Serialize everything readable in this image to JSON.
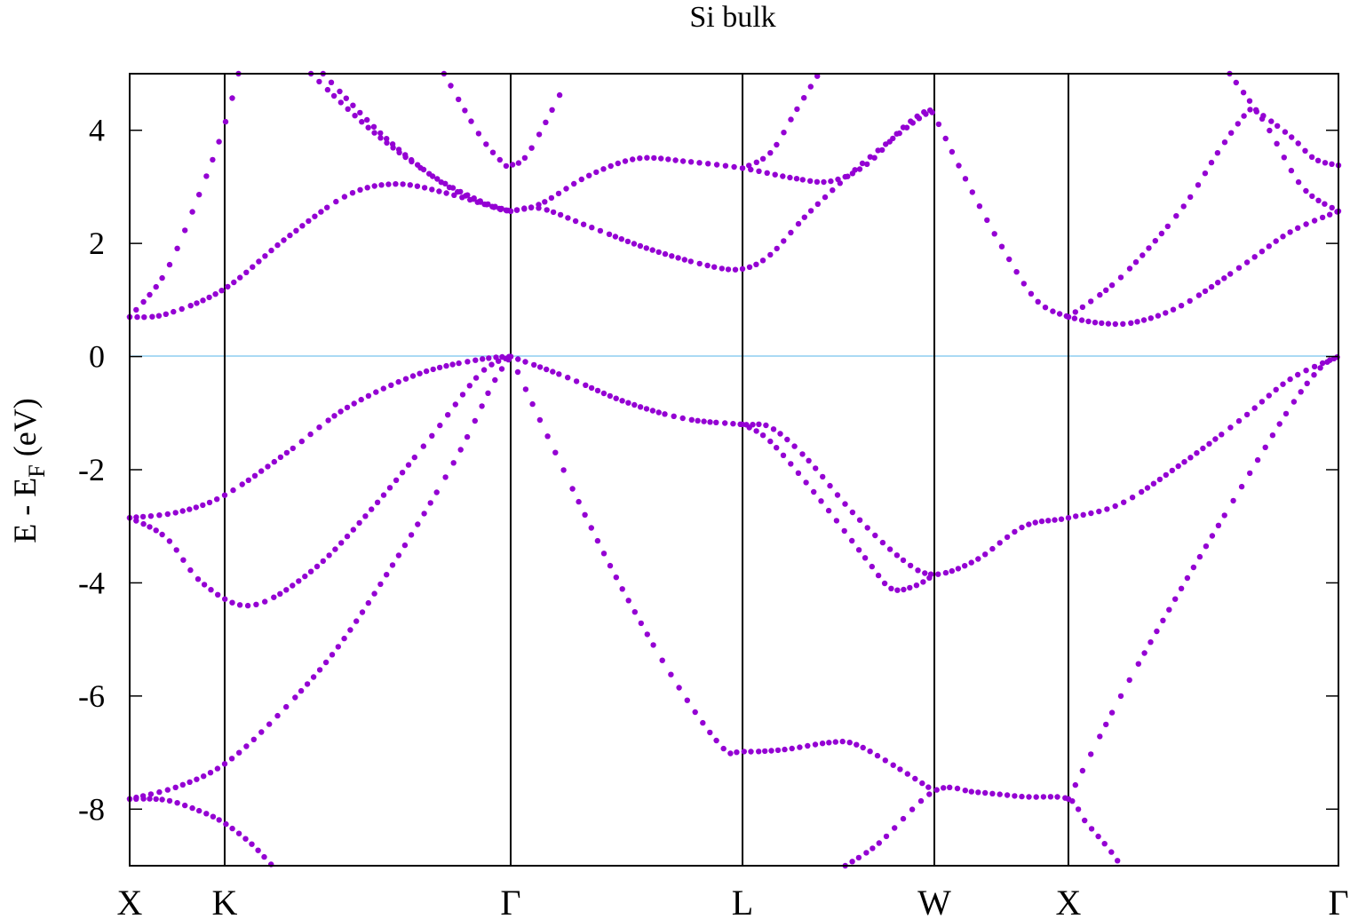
{
  "chart_data": {
    "type": "scatter",
    "subtype": "band-structure",
    "title": "Si bulk",
    "xlabel": "",
    "ylabel": "E - E_F (eV)",
    "ylabel_parts": {
      "main": "E - E",
      "sub": "F",
      "unit": " (eV)"
    },
    "ylim": [
      -9,
      5
    ],
    "yticks": [
      4,
      2,
      0,
      -2,
      -4,
      -6,
      -8
    ],
    "ytick_labels": [
      "4",
      "2",
      "0",
      "-2",
      "-4",
      "-6",
      "-8"
    ],
    "grid": false,
    "legend": null,
    "fermi_level": 0,
    "marker_color": "#9400d3",
    "fermi_line_color": "#56b4e9",
    "high_symmetry_points": [
      {
        "label": "X",
        "x": 0.0
      },
      {
        "label": "K",
        "x": 0.0786
      },
      {
        "label": "Γ",
        "x": 0.3152
      },
      {
        "label": "L",
        "x": 0.507
      },
      {
        "label": "W",
        "x": 0.6657
      },
      {
        "label": "X",
        "x": 0.7766
      },
      {
        "label": "Γ",
        "x": 1.0
      }
    ],
    "series": [
      {
        "name": "band-1",
        "points": [
          [
            0.0,
            -7.82
          ],
          [
            0.03,
            -7.84
          ],
          [
            0.06,
            -8.05
          ],
          [
            0.0786,
            -8.25
          ],
          [
            0.1,
            -8.6
          ],
          [
            0.118,
            -9.0
          ]
        ]
      },
      {
        "name": "band-1b",
        "points": [
          [
            0.592,
            -9.0
          ],
          [
            0.62,
            -8.6
          ],
          [
            0.6657,
            -7.68
          ],
          [
            0.7,
            -7.7
          ],
          [
            0.74,
            -7.78
          ],
          [
            0.7766,
            -7.82
          ],
          [
            0.79,
            -8.2
          ],
          [
            0.81,
            -8.7
          ],
          [
            0.82,
            -9.0
          ]
        ]
      },
      {
        "name": "band-2",
        "points": [
          [
            0.0,
            -7.82
          ],
          [
            0.04,
            -7.6
          ],
          [
            0.0786,
            -7.2
          ],
          [
            0.12,
            -6.4
          ],
          [
            0.17,
            -5.2
          ],
          [
            0.22,
            -3.6
          ],
          [
            0.27,
            -1.8
          ],
          [
            0.3,
            -0.5
          ],
          [
            0.3152,
            0.0
          ]
        ]
      },
      {
        "name": "band-2b",
        "points": [
          [
            0.3152,
            0.0
          ],
          [
            0.35,
            -1.6
          ],
          [
            0.4,
            -3.8
          ],
          [
            0.45,
            -5.7
          ],
          [
            0.49,
            -6.9
          ],
          [
            0.507,
            -6.98
          ],
          [
            0.54,
            -6.95
          ],
          [
            0.58,
            -6.82
          ],
          [
            0.6,
            -6.85
          ],
          [
            0.63,
            -7.2
          ],
          [
            0.6657,
            -7.68
          ]
        ]
      },
      {
        "name": "band-2c",
        "points": [
          [
            0.7766,
            -7.82
          ],
          [
            0.82,
            -6.0
          ],
          [
            0.87,
            -4.1
          ],
          [
            0.92,
            -2.3
          ],
          [
            0.96,
            -0.9
          ],
          [
            0.985,
            -0.2
          ],
          [
            1.0,
            0.0
          ]
        ]
      },
      {
        "name": "band-3",
        "points": [
          [
            0.0,
            -2.85
          ],
          [
            0.03,
            -3.2
          ],
          [
            0.06,
            -4.0
          ],
          [
            0.1,
            -4.4
          ],
          [
            0.15,
            -3.8
          ],
          [
            0.2,
            -2.7
          ],
          [
            0.25,
            -1.4
          ],
          [
            0.29,
            -0.3
          ],
          [
            0.3152,
            0.0
          ]
        ]
      },
      {
        "name": "band-3b",
        "points": [
          [
            0.507,
            -1.2
          ],
          [
            0.53,
            -1.5
          ],
          [
            0.57,
            -2.5
          ],
          [
            0.61,
            -3.6
          ],
          [
            0.63,
            -4.1
          ],
          [
            0.65,
            -4.05
          ],
          [
            0.6657,
            -3.85
          ]
        ]
      },
      {
        "name": "band-4",
        "points": [
          [
            0.0,
            -2.85
          ],
          [
            0.04,
            -2.75
          ],
          [
            0.0786,
            -2.45
          ],
          [
            0.13,
            -1.7
          ],
          [
            0.18,
            -0.9
          ],
          [
            0.24,
            -0.3
          ],
          [
            0.29,
            -0.05
          ],
          [
            0.3152,
            0.0
          ]
        ]
      },
      {
        "name": "band-4b",
        "points": [
          [
            0.3152,
            0.0
          ],
          [
            0.36,
            -0.35
          ],
          [
            0.41,
            -0.8
          ],
          [
            0.46,
            -1.1
          ],
          [
            0.507,
            -1.2
          ],
          [
            0.53,
            -1.25
          ],
          [
            0.56,
            -1.8
          ],
          [
            0.6,
            -2.8
          ],
          [
            0.64,
            -3.6
          ],
          [
            0.6657,
            -3.85
          ],
          [
            0.7,
            -3.6
          ],
          [
            0.74,
            -3.0
          ],
          [
            0.7766,
            -2.85
          ],
          [
            0.82,
            -2.6
          ],
          [
            0.87,
            -1.9
          ],
          [
            0.92,
            -1.1
          ],
          [
            0.96,
            -0.4
          ],
          [
            1.0,
            0.0
          ]
        ]
      },
      {
        "name": "band-5",
        "points": [
          [
            0.0,
            0.7
          ],
          [
            0.03,
            0.75
          ],
          [
            0.0786,
            1.2
          ],
          [
            0.13,
            2.1
          ],
          [
            0.18,
            2.85
          ],
          [
            0.22,
            3.05
          ],
          [
            0.26,
            2.9
          ],
          [
            0.3,
            2.65
          ],
          [
            0.3152,
            2.57
          ]
        ]
      },
      {
        "name": "band-5b",
        "points": [
          [
            0.3152,
            2.57
          ],
          [
            0.34,
            2.62
          ],
          [
            0.38,
            2.3
          ],
          [
            0.43,
            1.9
          ],
          [
            0.48,
            1.6
          ],
          [
            0.507,
            1.55
          ],
          [
            0.53,
            1.8
          ],
          [
            0.56,
            2.5
          ],
          [
            0.6,
            3.3
          ],
          [
            0.64,
            4.0
          ],
          [
            0.66,
            4.3
          ],
          [
            0.6657,
            4.25
          ],
          [
            0.69,
            3.2
          ],
          [
            0.72,
            2.0
          ],
          [
            0.75,
            1.0
          ],
          [
            0.7766,
            0.7
          ]
        ]
      },
      {
        "name": "band-5c",
        "points": [
          [
            0.7766,
            0.7
          ],
          [
            0.8,
            0.6
          ],
          [
            0.83,
            0.6
          ],
          [
            0.87,
            0.9
          ],
          [
            0.92,
            1.6
          ],
          [
            0.96,
            2.2
          ],
          [
            1.0,
            2.57
          ]
        ]
      },
      {
        "name": "band-6",
        "points": [
          [
            0.3152,
            2.57
          ],
          [
            0.34,
            2.7
          ],
          [
            0.38,
            3.2
          ],
          [
            0.42,
            3.5
          ],
          [
            0.46,
            3.45
          ],
          [
            0.507,
            3.33
          ],
          [
            0.55,
            3.15
          ],
          [
            0.58,
            3.1
          ],
          [
            0.61,
            3.4
          ],
          [
            0.64,
            4.05
          ],
          [
            0.66,
            4.35
          ],
          [
            0.6657,
            4.25
          ]
        ]
      },
      {
        "name": "band-6b",
        "points": [
          [
            0.7766,
            0.7
          ],
          [
            0.82,
            1.4
          ],
          [
            0.87,
            2.6
          ],
          [
            0.9,
            3.6
          ],
          [
            0.92,
            4.2
          ],
          [
            0.93,
            4.35
          ],
          [
            0.96,
            3.9
          ],
          [
            0.98,
            3.5
          ],
          [
            1.0,
            3.38
          ]
        ]
      },
      {
        "name": "band-7",
        "points": [
          [
            0.0,
            0.7
          ],
          [
            0.03,
            1.5
          ],
          [
            0.06,
            3.0
          ],
          [
            0.0786,
            4.1
          ],
          [
            0.09,
            5.0
          ]
        ]
      },
      {
        "name": "band-7b",
        "points": [
          [
            0.15,
            5.0
          ],
          [
            0.2,
            4.0
          ],
          [
            0.25,
            3.2
          ],
          [
            0.29,
            2.75
          ],
          [
            0.3152,
            2.57
          ]
        ]
      },
      {
        "name": "band-7c",
        "points": [
          [
            0.16,
            5.0
          ],
          [
            0.21,
            3.9
          ],
          [
            0.26,
            3.05
          ],
          [
            0.3,
            2.65
          ],
          [
            0.3152,
            2.57
          ]
        ]
      },
      {
        "name": "band-7d",
        "points": [
          [
            0.26,
            5.0
          ],
          [
            0.29,
            3.9
          ],
          [
            0.31,
            3.4
          ],
          [
            0.3152,
            3.38
          ],
          [
            0.33,
            3.6
          ],
          [
            0.36,
            4.8
          ]
        ]
      },
      {
        "name": "band-7e",
        "points": [
          [
            0.507,
            3.33
          ],
          [
            0.53,
            3.6
          ],
          [
            0.55,
            4.3
          ],
          [
            0.57,
            5.0
          ]
        ]
      },
      {
        "name": "band-7f",
        "points": [
          [
            0.91,
            5.0
          ],
          [
            0.94,
            4.1
          ],
          [
            0.97,
            3.0
          ],
          [
            1.0,
            2.57
          ]
        ]
      }
    ]
  }
}
